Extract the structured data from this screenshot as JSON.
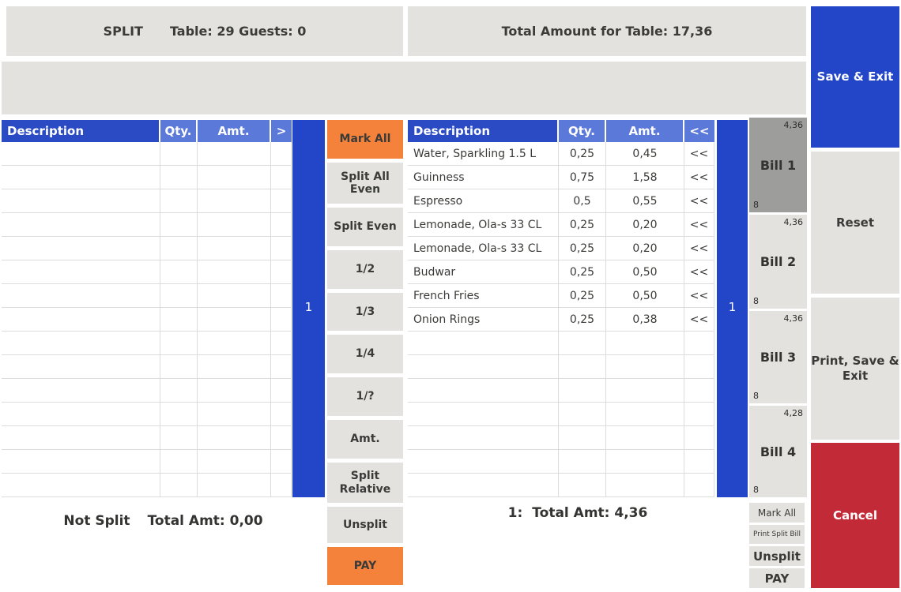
{
  "header": {
    "split_label": "SPLIT",
    "table_info": "Table: 29 Guests: 0",
    "total_label": "Total Amount for Table: 17,36"
  },
  "left_table": {
    "columns": [
      "Description",
      "Qty.",
      "Amt.",
      ">"
    ],
    "rows": [],
    "empty_row_count": 15
  },
  "right_table": {
    "columns": [
      "Description",
      "Qty.",
      "Amt.",
      "<<"
    ],
    "rows": [
      {
        "description": "Water, Sparkling 1.5 L",
        "qty": "0,25",
        "amt": "0,45",
        "action": "<<"
      },
      {
        "description": "Guinness",
        "qty": "0,75",
        "amt": "1,58",
        "action": "<<"
      },
      {
        "description": "Espresso",
        "qty": "0,5",
        "amt": "0,55",
        "action": "<<"
      },
      {
        "description": "Lemonade, Ola-s 33 CL",
        "qty": "0,25",
        "amt": "0,20",
        "action": "<<"
      },
      {
        "description": "Lemonade, Ola-s 33 CL",
        "qty": "0,25",
        "amt": "0,20",
        "action": "<<"
      },
      {
        "description": "Budwar",
        "qty": "0,25",
        "amt": "0,50",
        "action": "<<"
      },
      {
        "description": "French Fries",
        "qty": "0,25",
        "amt": "0,50",
        "action": "<<"
      },
      {
        "description": "Onion Rings",
        "qty": "0,25",
        "amt": "0,38",
        "action": "<<"
      }
    ],
    "total_row_count": 15
  },
  "left_bar": {
    "label": "1"
  },
  "right_bar": {
    "label": "1"
  },
  "split_buttons": [
    {
      "label": "Mark All",
      "style": "orange"
    },
    {
      "label": "Split All Even",
      "style": "gray"
    },
    {
      "label": "Split Even",
      "style": "gray"
    },
    {
      "label": "1/2",
      "style": "gray"
    },
    {
      "label": "1/3",
      "style": "gray"
    },
    {
      "label": "1/4",
      "style": "gray"
    },
    {
      "label": "1/?",
      "style": "gray"
    },
    {
      "label": "Amt.",
      "style": "gray"
    },
    {
      "label": "Split Relative",
      "style": "gray"
    },
    {
      "label": "Unsplit",
      "style": "gray"
    },
    {
      "label": "PAY",
      "style": "orange"
    }
  ],
  "bills": [
    {
      "name": "Bill 1",
      "amount": "4,36",
      "guests": "8",
      "selected": true
    },
    {
      "name": "Bill 2",
      "amount": "4,36",
      "guests": "8",
      "selected": false
    },
    {
      "name": "Bill 3",
      "amount": "4,36",
      "guests": "8",
      "selected": false
    },
    {
      "name": "Bill 4",
      "amount": "4,28",
      "guests": "8",
      "selected": false
    }
  ],
  "bill_actions": [
    {
      "label": "Mark All",
      "size": "normal"
    },
    {
      "label": "Print Split Bill",
      "size": "small"
    },
    {
      "label": "Unsplit",
      "size": "bold"
    },
    {
      "label": "PAY",
      "size": "bold"
    }
  ],
  "side_buttons": [
    {
      "label": "Save & Exit",
      "style": "blue"
    },
    {
      "label": "Reset",
      "style": "gray"
    },
    {
      "label": "Print, Save & Exit",
      "style": "gray"
    },
    {
      "label": "Cancel",
      "style": "red"
    }
  ],
  "footer_left": {
    "status": "Not Split",
    "total": "Total Amt: 0,00"
  },
  "footer_right": {
    "bill": "1:",
    "total": "Total Amt: 4,36"
  },
  "colors": {
    "accent_blue": "#2345c7",
    "header_dark_blue": "#2b4bc5",
    "header_light_blue": "#5b79d8",
    "orange": "#f5823b",
    "red": "#c22a38",
    "panel_gray": "#e3e2de",
    "selected_bill_gray": "#9d9d9b"
  }
}
